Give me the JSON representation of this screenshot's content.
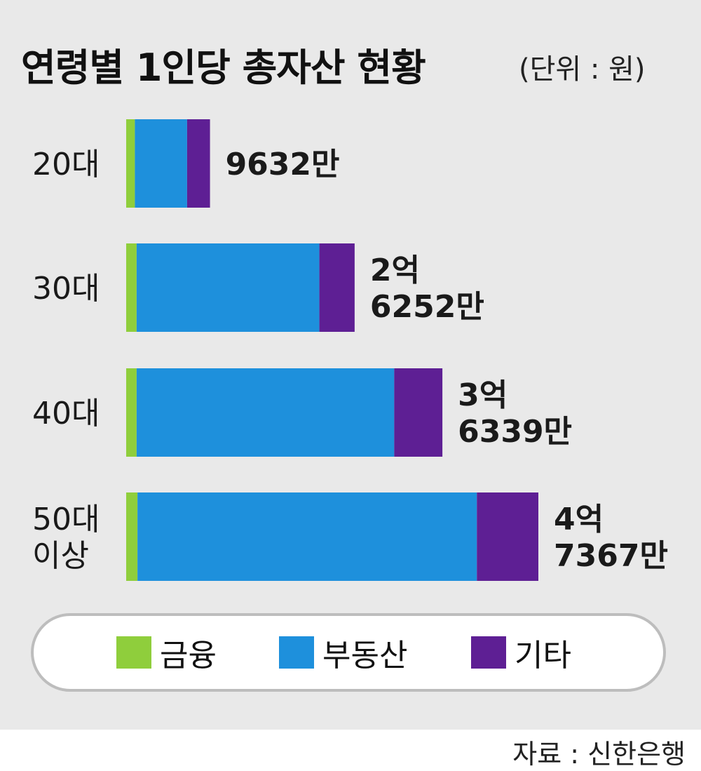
{
  "title": "연령별 1인당 총자산 현황",
  "unit": "(단위 : 원)",
  "source": "자료 : 신한은행",
  "colors": {
    "finance": "#8fce3c",
    "real_estate": "#1e90dc",
    "other": "#5e1f94",
    "panel_background": "#e9e9e9"
  },
  "legend": [
    {
      "name": "금융",
      "color": "#8fce3c"
    },
    {
      "name": "부동산",
      "color": "#1e90dc"
    },
    {
      "name": "기타",
      "color": "#5e1f94"
    }
  ],
  "chart_data": {
    "type": "bar",
    "orientation": "horizontal",
    "stacked": true,
    "title": "연령별 1인당 총자산 현황",
    "unit": "원",
    "categories": [
      [
        "20대"
      ],
      [
        "30대"
      ],
      [
        "40대"
      ],
      [
        "50대",
        "이상"
      ]
    ],
    "totals": [
      96320000,
      262520000,
      363390000,
      473670000
    ],
    "total_labels": [
      [
        "9632만"
      ],
      [
        "2억",
        "6252만"
      ],
      [
        "3억",
        "6339만"
      ],
      [
        "4억",
        "7367만"
      ]
    ],
    "series": [
      {
        "name": "금융",
        "values": [
          10000000,
          12000000,
          12000000,
          13000000
        ]
      },
      {
        "name": "부동산",
        "values": [
          60000000,
          210000000,
          296000000,
          390000000
        ]
      },
      {
        "name": "기타",
        "values": [
          26320000,
          40520000,
          55390000,
          70670000
        ]
      }
    ],
    "legend_position": "bottom",
    "grid": false,
    "xlim": [
      0,
      473670000
    ]
  }
}
